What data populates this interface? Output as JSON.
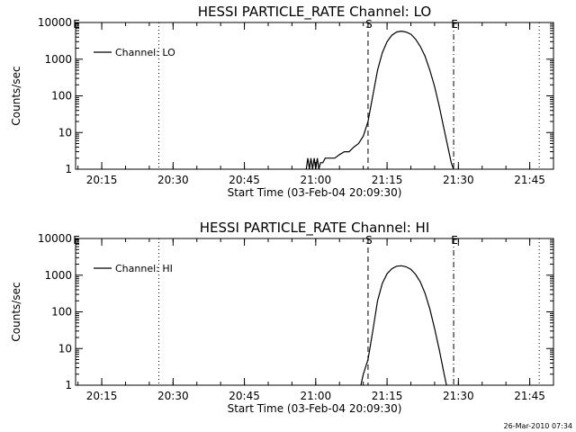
{
  "chart_data": [
    {
      "type": "line",
      "title": "HESSI PARTICLE_RATE Channel: LO",
      "xlabel": "Start Time (03-Feb-04 20:09:30)",
      "ylabel": "Counts/sec",
      "yscale": "log",
      "ylim": [
        1,
        10000
      ],
      "xlim": [
        "20:09:30",
        "21:50:00"
      ],
      "x_ticks": [
        "20:15",
        "20:30",
        "20:45",
        "21:00",
        "21:15",
        "21:30",
        "21:45"
      ],
      "y_ticks": [
        "1",
        "10",
        "100",
        "1000",
        "10000"
      ],
      "legend": {
        "position": "top-left",
        "entries": [
          "Channel: LO"
        ]
      },
      "markers": [
        {
          "label": "E",
          "time": "20:09:30",
          "style": "dash-dot"
        },
        {
          "label": "",
          "time": "20:27:00",
          "style": "dotted"
        },
        {
          "label": "S",
          "time": "21:11:00",
          "style": "dashed"
        },
        {
          "label": "E",
          "time": "21:29:00",
          "style": "dash-dot"
        },
        {
          "label": "",
          "time": "21:47:00",
          "style": "dotted"
        }
      ],
      "series": [
        {
          "name": "Channel: LO",
          "x": [
            "20:58:00",
            "20:58:20",
            "20:58:40",
            "20:59:00",
            "20:59:20",
            "20:59:40",
            "21:00:00",
            "21:00:20",
            "21:00:40",
            "21:01:00",
            "21:01:30",
            "21:02:00",
            "21:03:00",
            "21:04:00",
            "21:05:00",
            "21:06:00",
            "21:07:00",
            "21:08:00",
            "21:09:00",
            "21:10:00",
            "21:11:00",
            "21:12:00",
            "21:13:00",
            "21:14:00",
            "21:15:00",
            "21:16:00",
            "21:17:00",
            "21:18:00",
            "21:19:00",
            "21:20:00",
            "21:21:00",
            "21:22:00",
            "21:23:00",
            "21:24:00",
            "21:25:00",
            "21:26:00",
            "21:27:00",
            "21:28:00",
            "21:28:30",
            "21:29:00"
          ],
          "values": [
            1,
            2,
            1,
            2,
            1,
            2,
            1,
            2,
            1,
            1.5,
            1.5,
            2,
            2,
            2,
            2.5,
            3,
            3,
            4,
            5,
            8,
            20,
            100,
            500,
            1500,
            3000,
            4500,
            5500,
            5800,
            5500,
            4800,
            3500,
            2200,
            1200,
            500,
            180,
            50,
            12,
            3,
            1.5,
            1
          ]
        }
      ]
    },
    {
      "type": "line",
      "title": "HESSI PARTICLE_RATE Channel: HI",
      "xlabel": "Start Time (03-Feb-04 20:09:30)",
      "ylabel": "Counts/sec",
      "yscale": "log",
      "ylim": [
        1,
        10000
      ],
      "xlim": [
        "20:09:30",
        "21:50:00"
      ],
      "x_ticks": [
        "20:15",
        "20:30",
        "20:45",
        "21:00",
        "21:15",
        "21:30",
        "21:45"
      ],
      "y_ticks": [
        "1",
        "10",
        "100",
        "1000",
        "10000"
      ],
      "legend": {
        "position": "top-left",
        "entries": [
          "Channel: HI"
        ]
      },
      "markers": [
        {
          "label": "E",
          "time": "20:09:30",
          "style": "dash-dot"
        },
        {
          "label": "",
          "time": "20:27:00",
          "style": "dotted"
        },
        {
          "label": "S",
          "time": "21:11:00",
          "style": "dashed"
        },
        {
          "label": "E",
          "time": "21:29:00",
          "style": "dash-dot"
        },
        {
          "label": "",
          "time": "21:47:00",
          "style": "dotted"
        }
      ],
      "series": [
        {
          "name": "Channel: HI",
          "x": [
            "21:09:30",
            "21:10:00",
            "21:11:00",
            "21:12:00",
            "21:13:00",
            "21:14:00",
            "21:15:00",
            "21:16:00",
            "21:17:00",
            "21:18:00",
            "21:19:00",
            "21:20:00",
            "21:21:00",
            "21:22:00",
            "21:23:00",
            "21:24:00",
            "21:25:00",
            "21:26:00",
            "21:27:00",
            "21:27:30"
          ],
          "values": [
            1,
            2,
            5,
            30,
            200,
            600,
            1100,
            1500,
            1750,
            1800,
            1700,
            1450,
            1050,
            650,
            320,
            120,
            35,
            9,
            2,
            1
          ]
        }
      ]
    }
  ],
  "timestamp": "26-Mar-2010 07:34"
}
